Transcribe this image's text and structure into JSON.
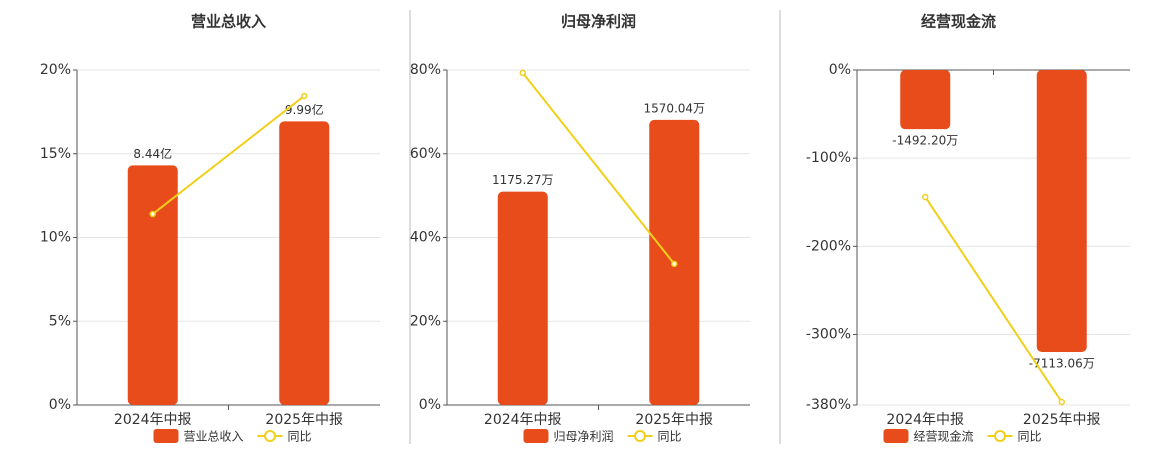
{
  "chart_data": [
    {
      "type": "combo",
      "title": "营业总收入",
      "categories": [
        "2024年中报",
        "2025年中报"
      ],
      "series": [
        {
          "name": "营业总收入",
          "color": "#e84c1a",
          "axis": "y2",
          "values": [
            8.44,
            9.99
          ],
          "value_labels": [
            "8.44亿",
            "9.99亿"
          ]
        },
        {
          "name": "同比",
          "color": "#f2cf1a",
          "values": [
            11.4,
            18.45
          ]
        }
      ],
      "ylim": [
        0,
        20
      ],
      "yticks": [
        {
          "value": 0,
          "label": "0%"
        },
        {
          "value": 5,
          "label": "5%"
        },
        {
          "value": 10,
          "label": "10%"
        },
        {
          "value": 15,
          "label": "15%"
        },
        {
          "value": 20,
          "label": "20%"
        }
      ],
      "y2lim": [
        0,
        11.8
      ],
      "grid": true
    },
    {
      "type": "combo",
      "title": "归母净利润",
      "categories": [
        "2024年中报",
        "2025年中报"
      ],
      "series": [
        {
          "name": "归母净利润",
          "color": "#e84c1a",
          "axis": "y2",
          "values": [
            1175.27,
            1570.04
          ],
          "value_labels": [
            "1175.27万",
            "1570.04万"
          ]
        },
        {
          "name": "同比",
          "color": "#f2cf1a",
          "values": [
            79.3,
            33.7
          ]
        }
      ],
      "ylim": [
        0,
        80
      ],
      "yticks": [
        {
          "value": 0,
          "label": "0%"
        },
        {
          "value": 20,
          "label": "20%"
        },
        {
          "value": 40,
          "label": "40%"
        },
        {
          "value": 60,
          "label": "60%"
        },
        {
          "value": 80,
          "label": "80%"
        }
      ],
      "y2lim": [
        0,
        1845
      ],
      "grid": true
    },
    {
      "type": "combo",
      "title": "经营现金流",
      "categories": [
        "2024年中报",
        "2025年中报"
      ],
      "series": [
        {
          "name": "经营现金流",
          "color": "#e84c1a",
          "axis": "y2",
          "values": [
            -1492.2,
            -7113.06
          ],
          "value_labels": [
            "-1492.20万",
            "-7113.06万"
          ]
        },
        {
          "name": "同比",
          "color": "#f2cf1a",
          "values": [
            -144,
            -376.6
          ]
        }
      ],
      "ylim": [
        -380,
        0
      ],
      "yticks": [
        {
          "value": 0,
          "label": "0%"
        },
        {
          "value": -100,
          "label": "-100%"
        },
        {
          "value": -200,
          "label": "-200%"
        },
        {
          "value": -300,
          "label": "-300%"
        },
        {
          "value": -380,
          "label": "-380%"
        }
      ],
      "y2lim": [
        -8450,
        0
      ],
      "grid": true
    }
  ]
}
